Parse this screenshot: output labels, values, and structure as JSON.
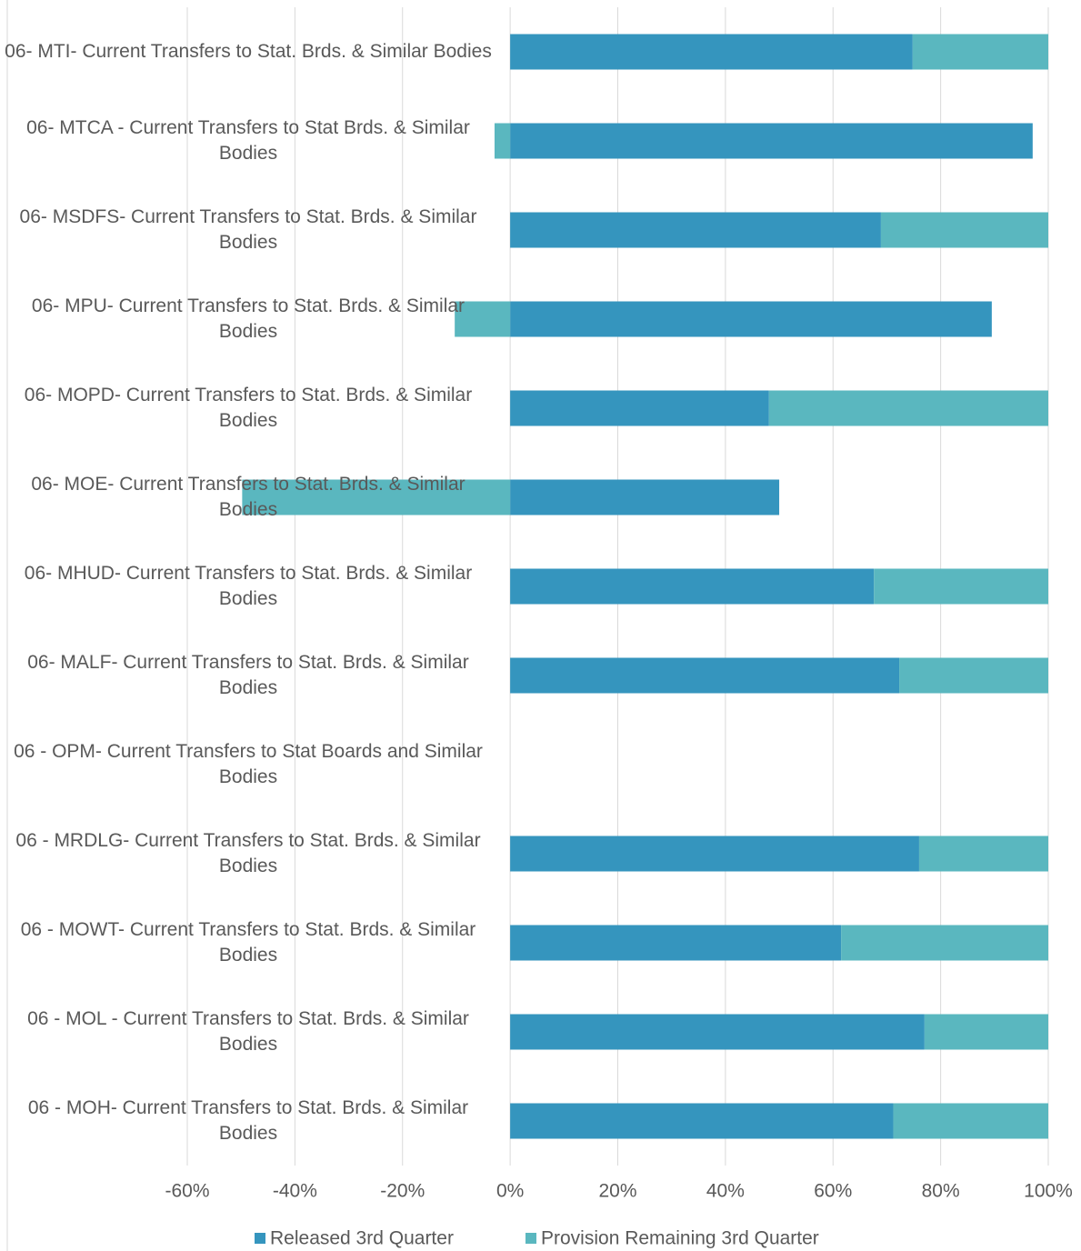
{
  "chart_data": {
    "type": "stacked-barh",
    "categories": [
      "06- MTI- Current Transfers to Stat. Brds. & Similar Bodies",
      "06- MTCA - Current Transfers to Stat Brds. & Similar Bodies",
      "06- MSDFS- Current Transfers to Stat. Brds. & Similar Bodies",
      "06- MPU- Current Transfers to Stat. Brds. & Similar Bodies",
      "06- MOPD- Current Transfers to Stat. Brds. & Similar Bodies",
      "06- MOE- Current Transfers to Stat. Brds. & Similar Bodies",
      "06- MHUD- Current Transfers to Stat. Brds. & Similar Bodies",
      "06- MALF- Current Transfers to Stat. Brds. & Similar Bodies",
      "06 - OPM- Current Transfers to Stat Boards and Similar Bodies",
      "06 - MRDLG-  Current Transfers to Stat. Brds. & Similar Bodies",
      "06 - MOWT- Current Transfers to Stat. Brds. & Similar Bodies",
      "06 - MOL - Current Transfers to Stat. Brds. & Similar Bodies",
      "06 - MOH- Current Transfers to Stat. Brds. & Similar Bodies"
    ],
    "series": [
      {
        "name": "Released 3rd Quarter",
        "color": "#3595be",
        "values": [
          74.8,
          97.1,
          68.9,
          89.5,
          48.1,
          50,
          67.6,
          72.3,
          null,
          76,
          61.5,
          77,
          71.2
        ]
      },
      {
        "name": "Provision Remaining 3rd Quarter",
        "color": "#5ab7bf",
        "values": [
          25.2,
          -2.9,
          31.1,
          -10.3,
          51.9,
          -49.8,
          32.4,
          27.7,
          null,
          24,
          38.5,
          23,
          28.8
        ]
      }
    ],
    "xlim": [
      -60,
      100
    ],
    "xticks": [
      {
        "value": -60,
        "label": "-60%"
      },
      {
        "value": -40,
        "label": "-40%"
      },
      {
        "value": -20,
        "label": "-20%"
      },
      {
        "value": 0,
        "label": "0%"
      },
      {
        "value": 20,
        "label": "20%"
      },
      {
        "value": 40,
        "label": "40%"
      },
      {
        "value": 60,
        "label": "60%"
      },
      {
        "value": 80,
        "label": "80%"
      },
      {
        "value": 100,
        "label": "100%"
      }
    ],
    "grid": true,
    "legend": "bottom"
  }
}
